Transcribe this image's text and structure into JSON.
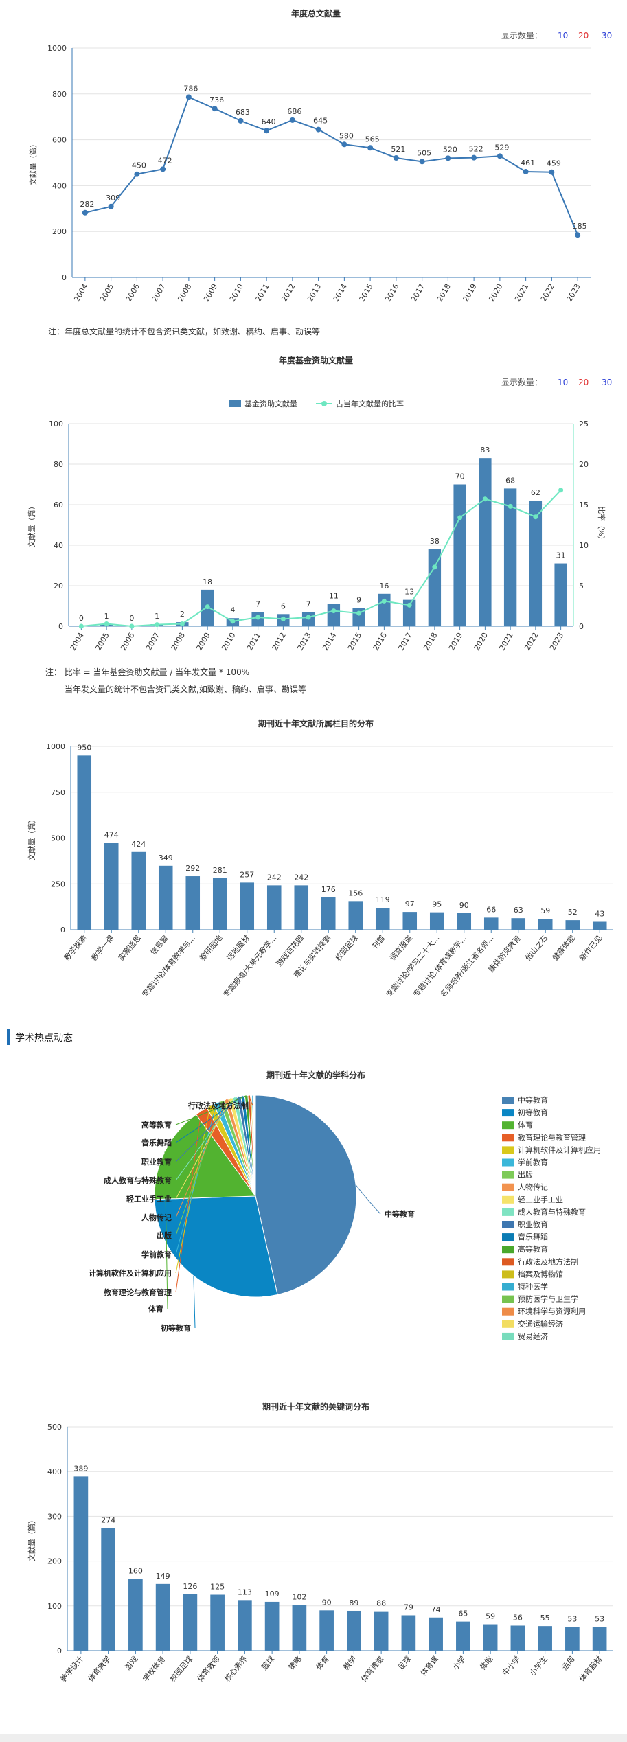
{
  "charts": {
    "c1": {
      "controls": {
        "label": "显示数量：",
        "options": [
          {
            "text": "10",
            "color": "#2a3dd6"
          },
          {
            "text": "20",
            "color": "#e03131"
          },
          {
            "text": "30",
            "color": "#2a3dd6"
          }
        ]
      },
      "note": "注：年度总文献量的统计不包含资讯类文献，如致谢、稿约、启事、勘误等"
    },
    "c2": {
      "controls": {
        "label": "显示数量：",
        "options": [
          {
            "text": "10",
            "color": "#2a3dd6"
          },
          {
            "text": "20",
            "color": "#e03131"
          },
          {
            "text": "30",
            "color": "#2a3dd6"
          }
        ]
      },
      "note1": "注：  比率 = 当年基金资助文献量 / 当年发文量 * 100%",
      "note2": "当年发文量的统计不包含资讯类文献,如致谢、稿约、启事、勘误等"
    },
    "section": {
      "title": "学术热点动态"
    }
  },
  "chart_data": [
    {
      "type": "line",
      "title": "年度总文献量",
      "ylabel": "文献量（篇）",
      "x": [
        "2004",
        "2005",
        "2006",
        "2007",
        "2008",
        "2009",
        "2010",
        "2011",
        "2012",
        "2013",
        "2014",
        "2015",
        "2016",
        "2017",
        "2018",
        "2019",
        "2020",
        "2021",
        "2022",
        "2023"
      ],
      "values": [
        282,
        309,
        450,
        472,
        786,
        736,
        683,
        640,
        686,
        645,
        580,
        565,
        521,
        505,
        520,
        522,
        529,
        461,
        459,
        185
      ],
      "ylim": [
        0,
        1000
      ],
      "yticks": [
        0,
        200,
        400,
        600,
        800,
        1000
      ],
      "color": "#3a78b5",
      "grid": true
    },
    {
      "type": "bar",
      "title": "年度基金资助文献量",
      "ylabel": "文献量（篇）",
      "y2label": "比率（%）",
      "categories": [
        "2004",
        "2005",
        "2006",
        "2007",
        "2008",
        "2009",
        "2010",
        "2011",
        "2012",
        "2013",
        "2014",
        "2015",
        "2016",
        "2017",
        "2018",
        "2019",
        "2020",
        "2021",
        "2022",
        "2023"
      ],
      "series": [
        {
          "name": "基金资助文献量",
          "type": "bar",
          "color": "#4682b4",
          "values": [
            0,
            1,
            0,
            1,
            2,
            18,
            4,
            7,
            6,
            7,
            11,
            9,
            16,
            13,
            38,
            70,
            83,
            68,
            62,
            31
          ]
        },
        {
          "name": "占当年文献量的比率",
          "type": "line",
          "color": "#6ee7c1",
          "values": [
            0,
            0.3,
            0,
            0.2,
            0.3,
            2.4,
            0.6,
            1.1,
            0.9,
            1.1,
            1.9,
            1.6,
            3.1,
            2.6,
            7.3,
            13.4,
            15.7,
            14.8,
            13.5,
            16.8
          ]
        }
      ],
      "ylim": [
        0,
        100
      ],
      "yticks": [
        0,
        20,
        40,
        60,
        80,
        100
      ],
      "y2lim": [
        0,
        25
      ],
      "y2ticks": [
        0,
        5,
        10,
        15,
        20,
        25
      ],
      "legend": "top-center",
      "grid": true
    },
    {
      "type": "bar",
      "title": "期刊近十年文献所属栏目的分布",
      "ylabel": "文献量（篇）",
      "categories": [
        "教学探索",
        "教学一得",
        "实案适思",
        "信息窗",
        "专题讨论/体育教学与...",
        "教研园地",
        "远地展材",
        "专题报道/大单元教学...",
        "游戏百花园",
        "理论与实践探索",
        "校园足球",
        "刊首",
        "调查报道",
        "专题讨论/学习二十大...",
        "专题讨论.体育课教学...",
        "名师培养/浙江省名师...",
        "康体防克教育",
        "他山之石",
        "健康体能",
        "新作已见"
      ],
      "values": [
        950,
        474,
        424,
        349,
        292,
        281,
        257,
        242,
        242,
        176,
        156,
        119,
        97,
        95,
        90,
        66,
        63,
        59,
        52,
        43
      ],
      "value_labels": [
        "950",
        "474",
        "424",
        "349",
        "292",
        "281",
        "257",
        "242",
        "242",
        "176",
        "156",
        "119",
        "97",
        "95",
        "90",
        "66",
        "63",
        "59",
        "52",
        "43"
      ],
      "ylim": [
        0,
        1000
      ],
      "yticks": [
        0,
        250,
        500,
        750,
        1000
      ],
      "color": "#4682b4",
      "grid": true
    },
    {
      "type": "pie",
      "title": "期刊近十年文献的学科分布",
      "slices": [
        {
          "label": "中等教育",
          "value": 46.5,
          "color": "#4682b4"
        },
        {
          "label": "初等教育",
          "value": 28.0,
          "color": "#0a86c4"
        },
        {
          "label": "体育",
          "value": 15.5,
          "color": "#52b330"
        },
        {
          "label": "教育理论与教育管理",
          "value": 2.0,
          "color": "#e65f27"
        },
        {
          "label": "计算机软件及计算机应用",
          "value": 1.2,
          "color": "#d9c91c"
        },
        {
          "label": "学前教育",
          "value": 1.0,
          "color": "#3ab7d9"
        },
        {
          "label": "出版",
          "value": 0.8,
          "color": "#7ecb58"
        },
        {
          "label": "人物传记",
          "value": 0.7,
          "color": "#f2934f"
        },
        {
          "label": "轻工业手工业",
          "value": 0.7,
          "color": "#f5e36a"
        },
        {
          "label": "成人教育与特殊教育",
          "value": 0.7,
          "color": "#7fe3c2"
        },
        {
          "label": "职业教育",
          "value": 0.6,
          "color": "#3e77b0"
        },
        {
          "label": "音乐舞蹈",
          "value": 0.6,
          "color": "#0b7cb4"
        },
        {
          "label": "高等教育",
          "value": 0.5,
          "color": "#4aa82c"
        },
        {
          "label": "行政法及地方法制",
          "value": 0.4,
          "color": "#dd5a22"
        },
        {
          "label": "档案及博物馆",
          "value": 0.2,
          "color": "#cdbd1a"
        },
        {
          "label": "特种医学",
          "value": 0.2,
          "color": "#35add0"
        },
        {
          "label": "预防医学与卫生学",
          "value": 0.1,
          "color": "#77c350"
        },
        {
          "label": "环境科学与资源利用",
          "value": 0.1,
          "color": "#ee8c48"
        },
        {
          "label": "交通运输经济",
          "value": 0.1,
          "color": "#f2dd61"
        },
        {
          "label": "贸易经济",
          "value": 0.1,
          "color": "#78dcbc"
        }
      ],
      "visible_labels": [
        "中等教育",
        "初等教育",
        "体育",
        "教育理论与教育管理",
        "计算机软件及计算机应用",
        "学前教育",
        "出版",
        "人物传记",
        "轻工业手工业",
        "成人教育与特殊教育",
        "职业教育",
        "音乐舞蹈",
        "高等教育",
        "行政法及地方法制"
      ],
      "legend": "right"
    },
    {
      "type": "bar",
      "title": "期刊近十年文献的关键词分布",
      "ylabel": "文献量（篇）",
      "categories": [
        "教学设计",
        "体育教学",
        "游戏",
        "学校体育",
        "校园足球",
        "体育教师",
        "核心素养",
        "篮球",
        "策略",
        "体育",
        "教学",
        "体育课堂",
        "足球",
        "体育课",
        "小学",
        "体能",
        "中小学",
        "小学生",
        "运用",
        "体育器材"
      ],
      "values": [
        389,
        274,
        160,
        149,
        126,
        125,
        113,
        109,
        102,
        90,
        89,
        88,
        79,
        74,
        65,
        59,
        56,
        55,
        53,
        53
      ],
      "ylim": [
        0,
        500
      ],
      "yticks": [
        0,
        100,
        200,
        300,
        400,
        500
      ],
      "color": "#4682b4",
      "grid": true
    }
  ]
}
